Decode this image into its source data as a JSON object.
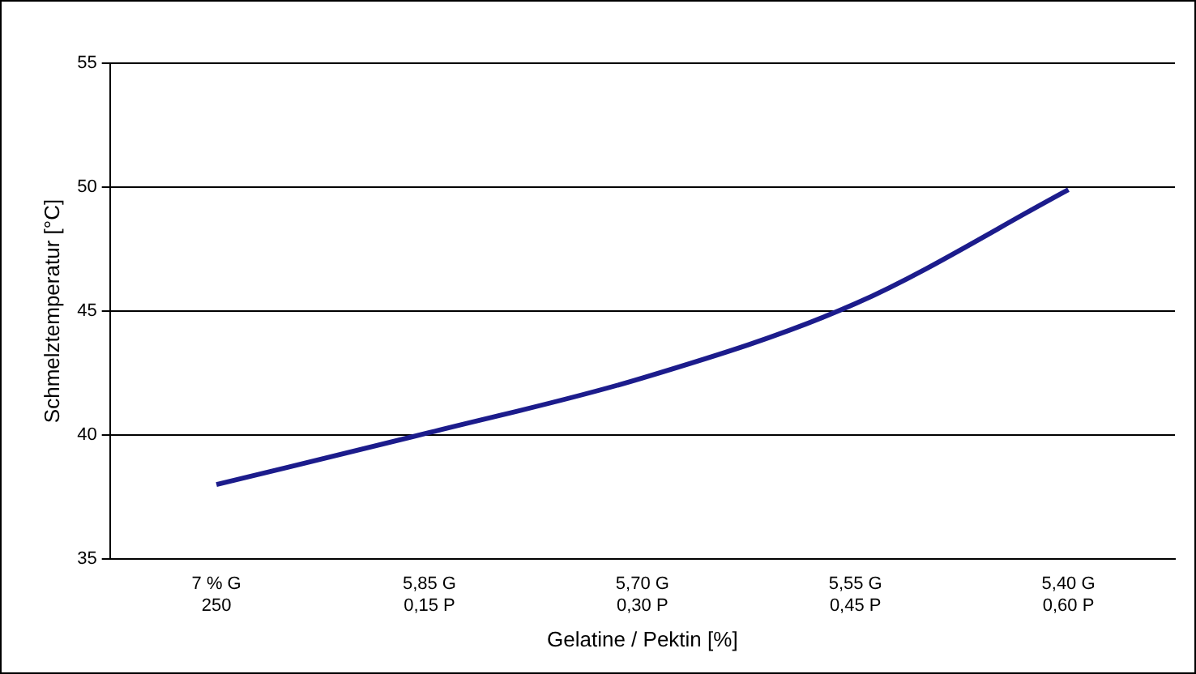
{
  "chart_data": {
    "type": "line",
    "xlabel": "Gelatine / Pektin [%]",
    "ylabel": "Schmelztemperatur [°C]",
    "categories": [
      "7 % G\n250",
      "5,85 G\n0,15 P",
      "5,70 G\n0,30 P",
      "5,55 G\n0,45 P",
      "5,40 G\n0,60 P"
    ],
    "series": [
      {
        "color": "#1c1c8c",
        "values": [
          38,
          40.1,
          42.3,
          45.3,
          49.9
        ]
      }
    ],
    "ylim": [
      35,
      55
    ],
    "yticks": [
      35,
      40,
      45,
      50,
      55
    ],
    "grid": "y",
    "legend": false,
    "marker": "none",
    "line_style": "solid"
  }
}
